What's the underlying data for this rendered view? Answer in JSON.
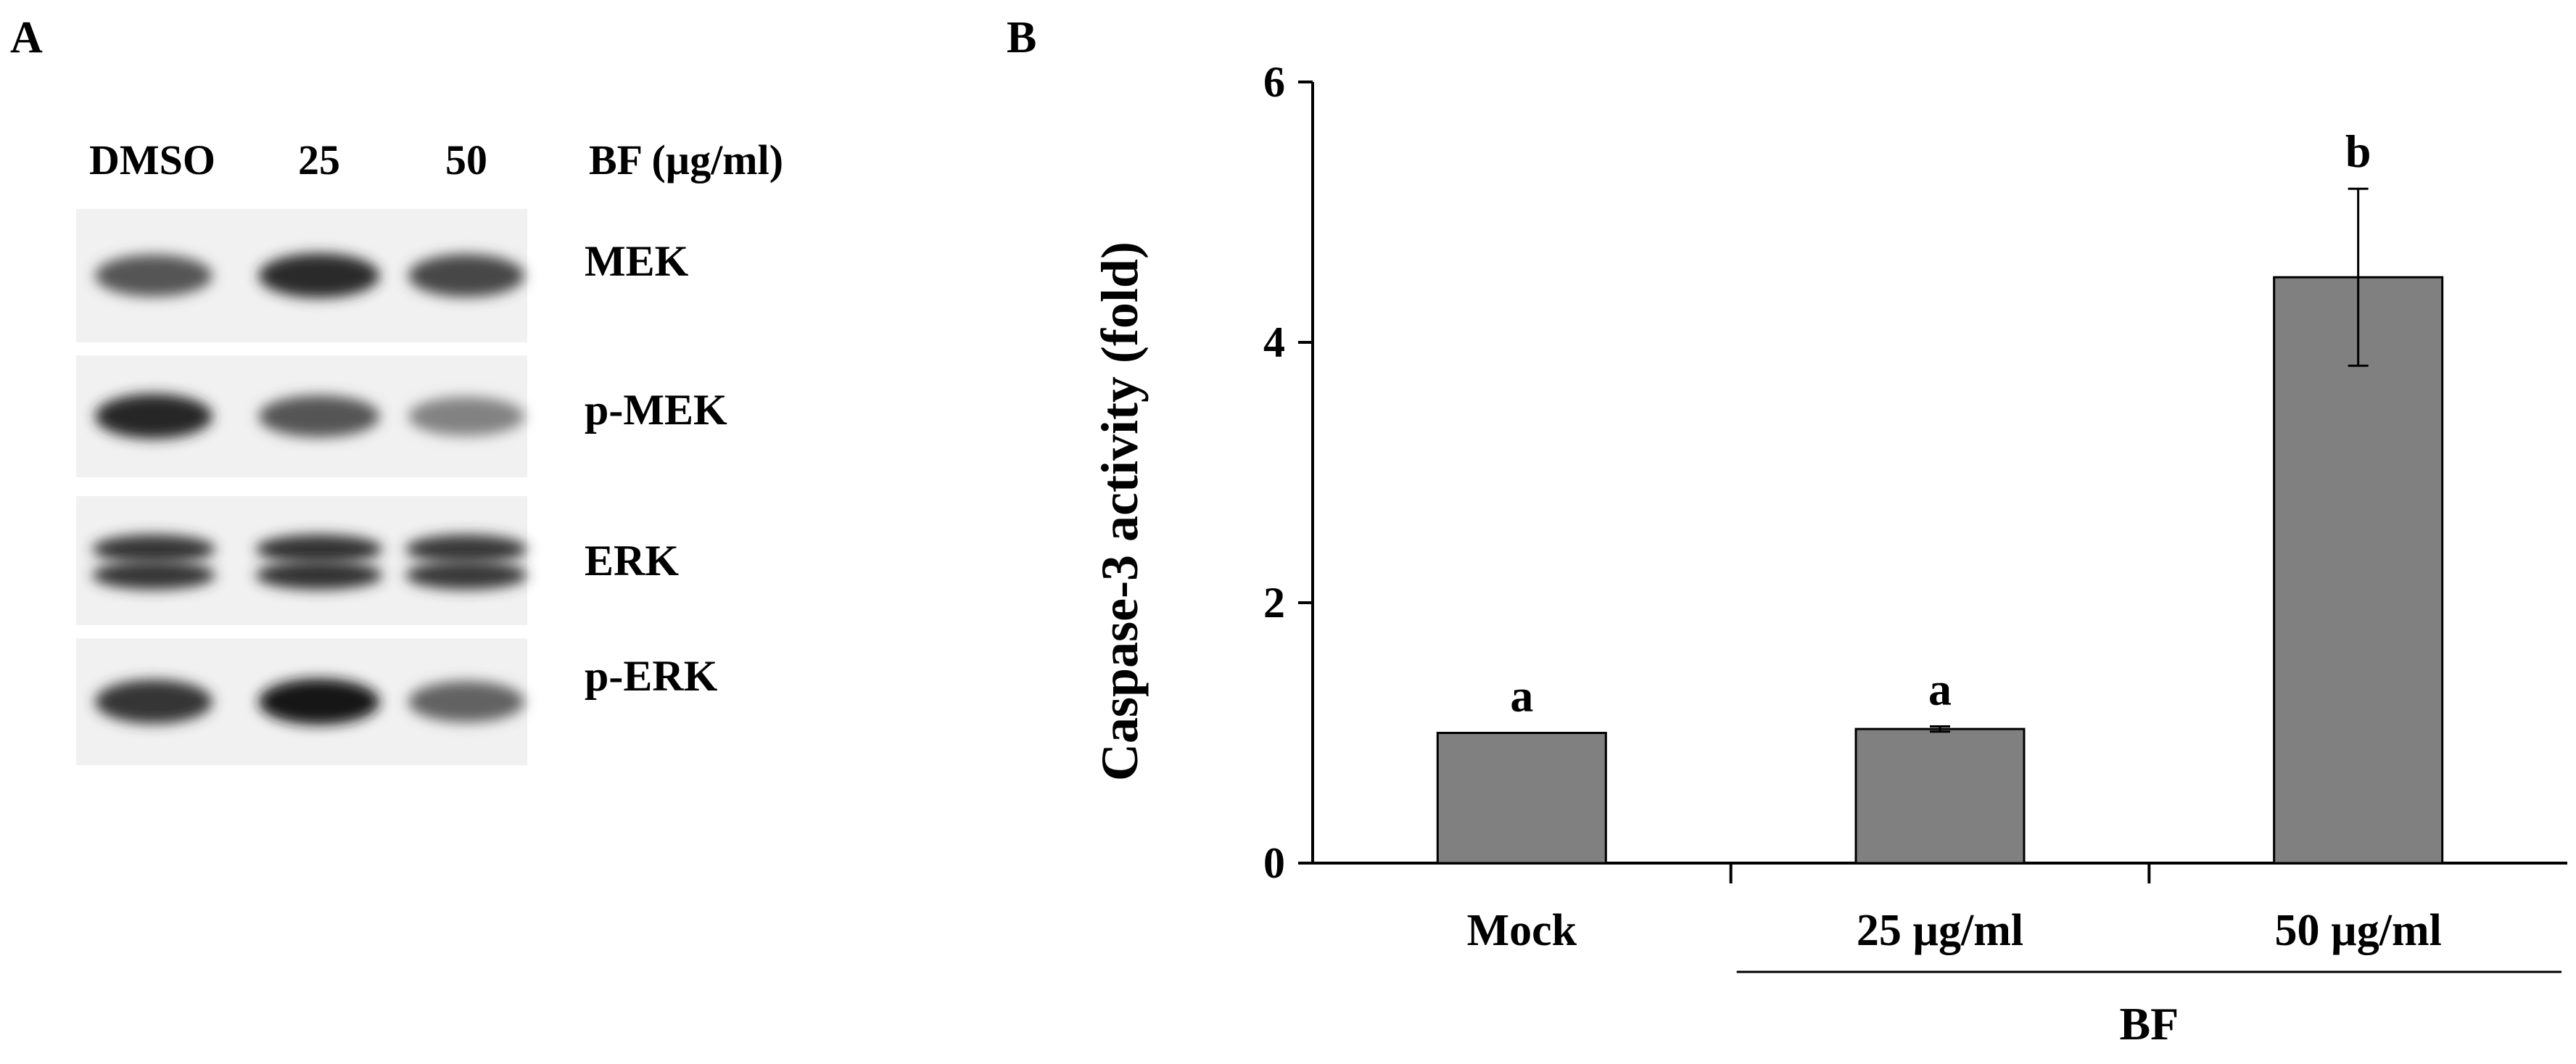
{
  "panel_a": {
    "letter": "A",
    "lane_labels": [
      "DMSO",
      "25",
      "50"
    ],
    "treatment_label": "BF (µg/ml)",
    "proteins": [
      {
        "name": "MEK",
        "intensities": [
          0.62,
          0.85,
          0.7
        ]
      },
      {
        "name": "p-MEK",
        "intensities": [
          0.88,
          0.62,
          0.38
        ]
      },
      {
        "name": "ERK",
        "intensities": [
          0.8,
          0.82,
          0.78
        ]
      },
      {
        "name": "p-ERK",
        "intensities": [
          0.8,
          0.98,
          0.55
        ]
      }
    ]
  },
  "panel_b": {
    "letter": "B"
  },
  "chart_data": {
    "type": "bar",
    "categories": [
      "Mock",
      "25 µg/ml",
      "50 µg/ml"
    ],
    "values": [
      1.0,
      1.03,
      4.5
    ],
    "error": [
      0,
      0.02,
      0.68
    ],
    "significance": [
      "a",
      "a",
      "b"
    ],
    "ylabel": "Caspase-3 activity (fold)",
    "xlabel": "",
    "group_label": "BF",
    "group_categories": [
      "25 µg/ml",
      "50 µg/ml"
    ],
    "ylim": [
      0,
      6
    ],
    "yticks": [
      0,
      2,
      4,
      6
    ],
    "grid": false,
    "bar_color": "#808080"
  }
}
